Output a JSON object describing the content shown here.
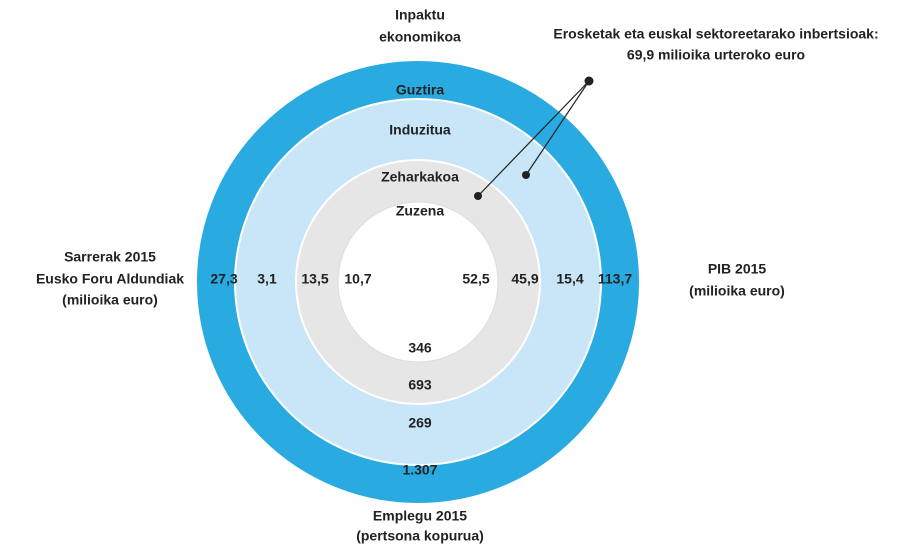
{
  "top_label": [
    "Inpaktu",
    "ekonomikoa"
  ],
  "annotation": [
    "Erosketak eta euskal sektoreetarako inbertsioak:",
    "69,9 milioika urteroko euro"
  ],
  "left_label": [
    "Sarrerak 2015",
    "Eusko Foru Aldundiak",
    "(milioika euro)"
  ],
  "right_label": [
    "PIB 2015",
    "(milioika euro)"
  ],
  "bottom_label": [
    "Emplegu 2015",
    "(pertsona kopurua)"
  ],
  "rings": [
    {
      "name": "Guztira",
      "left": "27,3",
      "right": "113,7",
      "bottom": "1.307"
    },
    {
      "name": "Induzitua",
      "left": "3,1",
      "right": "15,4",
      "bottom": "269"
    },
    {
      "name": "Zeharkakoa",
      "left": "13,5",
      "right": "45,9",
      "bottom": "693"
    },
    {
      "name": "Zuzena",
      "left": "10,7",
      "right": "52,5",
      "bottom": "346"
    }
  ]
}
